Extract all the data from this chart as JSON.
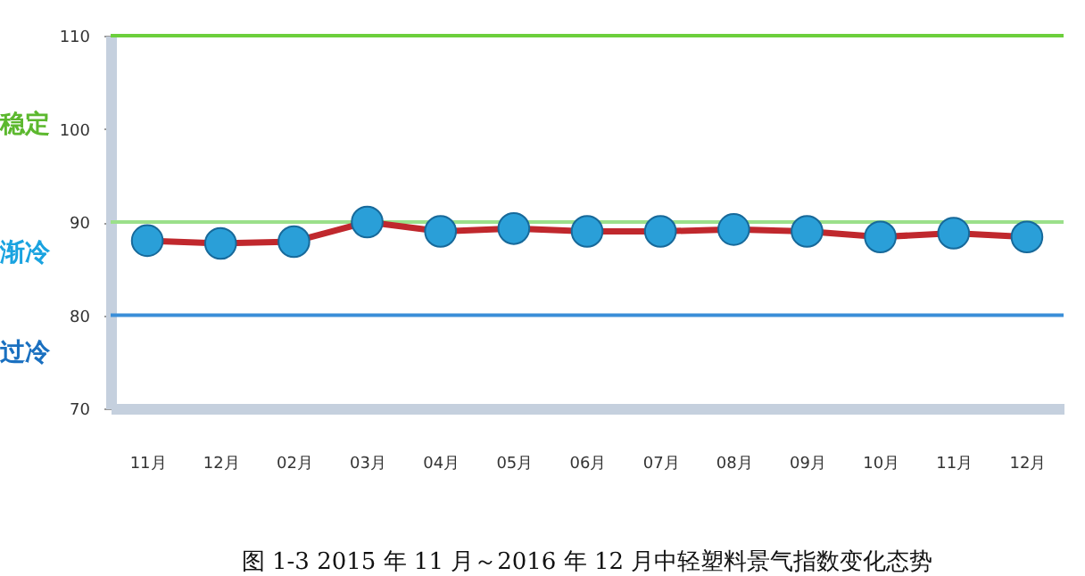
{
  "chart_data": {
    "type": "line",
    "categories": [
      "11月",
      "12月",
      "02月",
      "03月",
      "04月",
      "05月",
      "06月",
      "07月",
      "08月",
      "09月",
      "10月",
      "11月",
      "12月"
    ],
    "series": [
      {
        "color": "#c0282d",
        "values": [
          88.0,
          87.7,
          87.9,
          90.0,
          89.0,
          89.3,
          89.0,
          89.0,
          89.2,
          89.0,
          88.4,
          88.8,
          88.4
        ]
      }
    ],
    "ylim": [
      70,
      110
    ],
    "yticks": [
      70,
      80,
      90,
      100,
      110
    ],
    "marker": "circle",
    "grid": false,
    "ref_lines": [
      {
        "axis": "y",
        "value": 110,
        "color": "#6ccf3c"
      },
      {
        "axis": "y",
        "value": 90,
        "color": "#9be08a"
      },
      {
        "axis": "y",
        "value": 80,
        "color": "#3a8ed8"
      }
    ],
    "annotations": [
      "稳定",
      "渐冷",
      "过冷",
      "图 1-3   2015 年 11 月～2016 年 12 月中轻塑料景气指数变化态势"
    ]
  }
}
